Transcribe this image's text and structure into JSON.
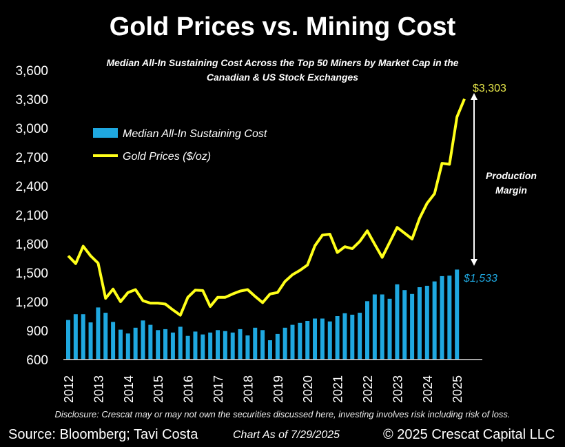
{
  "chart_data": {
    "type": "bar+line",
    "title": "Gold Prices vs. Mining Cost",
    "subtitle": "Median All-In Sustaining Cost Across the Top 50 Miners by Market Cap in the Canadian & US Stock Exchanges",
    "ylim": [
      600,
      3600
    ],
    "yticks": [
      "600",
      "900",
      "1,200",
      "1,500",
      "1,800",
      "2,100",
      "2,400",
      "2,700",
      "3,000",
      "3,300",
      "3,600"
    ],
    "ytick_values": [
      600,
      900,
      1200,
      1500,
      1800,
      2100,
      2400,
      2700,
      3000,
      3300,
      3600
    ],
    "xticks": [
      "2012",
      "2013",
      "2014",
      "2015",
      "2016",
      "2017",
      "2018",
      "2019",
      "2020",
      "2021",
      "2022",
      "2023",
      "2024",
      "2025"
    ],
    "x_frequency": "quarterly",
    "grid": false,
    "legend_position": "top-left",
    "series": [
      {
        "name": "Median All-In Sustaining Cost",
        "type": "bar",
        "color": "#1fa8e0",
        "values": [
          1010,
          1070,
          1070,
          985,
          1140,
          1085,
          990,
          910,
          870,
          930,
          1005,
          960,
          905,
          915,
          880,
          940,
          845,
          890,
          860,
          880,
          905,
          895,
          880,
          915,
          850,
          930,
          905,
          800,
          865,
          930,
          960,
          980,
          1000,
          1025,
          1025,
          995,
          1050,
          1080,
          1065,
          1085,
          1205,
          1275,
          1275,
          1230,
          1380,
          1320,
          1280,
          1350,
          1365,
          1410,
          1465,
          1470,
          1533
        ]
      },
      {
        "name": "Gold Prices ($/oz)",
        "type": "line",
        "color": "#ffff1a",
        "values": [
          1675,
          1595,
          1775,
          1675,
          1600,
          1235,
          1330,
          1200,
          1295,
          1325,
          1210,
          1185,
          1185,
          1175,
          1115,
          1060,
          1245,
          1320,
          1315,
          1150,
          1245,
          1245,
          1280,
          1310,
          1325,
          1255,
          1190,
          1280,
          1295,
          1410,
          1480,
          1525,
          1580,
          1780,
          1890,
          1900,
          1710,
          1770,
          1750,
          1825,
          1935,
          1795,
          1660,
          1815,
          1970,
          1910,
          1850,
          2065,
          2220,
          2320,
          2635,
          2625,
          3115,
          3303
        ]
      }
    ],
    "annotations": {
      "gold_last": "$3,303",
      "cost_last": "$1,533",
      "margin_label_1": "Production",
      "margin_label_2": "Margin"
    }
  },
  "footer": {
    "disclosure": "Disclosure: Crescat may or may not own the securities discussed here, investing involves risk including risk of loss.",
    "source": "Source: Bloomberg; Tavi Costa",
    "as_of": "Chart As of 7/29/2025",
    "copyright": "© 2025 Crescat Capital LLC"
  }
}
